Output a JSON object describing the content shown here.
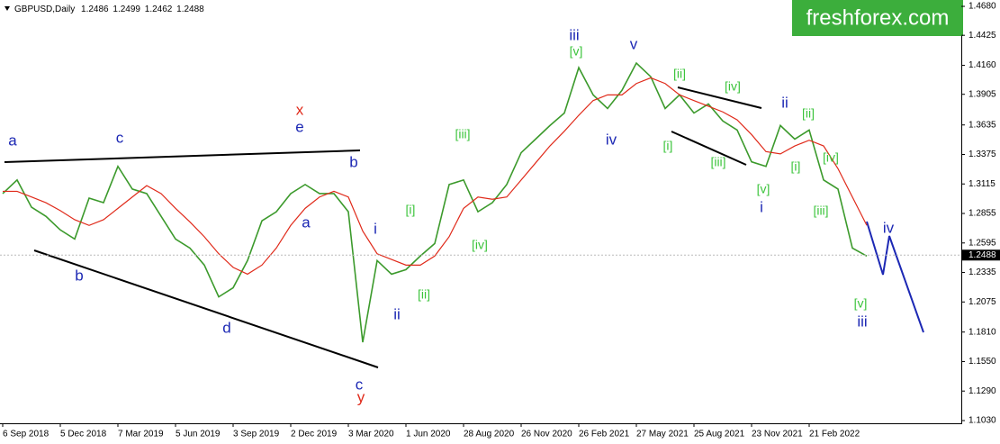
{
  "chart_data": {
    "type": "line",
    "symbol": "GBPUSD,Daily",
    "ohlc": [
      1.2486,
      1.2499,
      1.2462,
      1.2488
    ],
    "logo": "freshforex.com",
    "categories": [
      "6 Sep 2018",
      null,
      null,
      null,
      "5 Dec 2018",
      null,
      null,
      null,
      "7 Mar 2019",
      null,
      null,
      null,
      "5 Jun 2019",
      null,
      null,
      null,
      "3 Sep 2019",
      null,
      null,
      null,
      "2 Dec 2019",
      null,
      null,
      null,
      "3 Mar 2020",
      null,
      null,
      null,
      "1 Jun 2020",
      null,
      null,
      null,
      "28 Aug 2020",
      null,
      null,
      null,
      "26 Nov 2020",
      null,
      null,
      null,
      "26 Feb 2021",
      null,
      null,
      null,
      "27 May 2021",
      null,
      null,
      null,
      "25 Aug 2021",
      null,
      null,
      null,
      "23 Nov 2021",
      null,
      null,
      null,
      "21 Feb 2022",
      null,
      null,
      null,
      null
    ],
    "series": [
      {
        "name": "GBPUSD",
        "color": "#3c9a2c",
        "values": [
          1.303,
          1.315,
          1.291,
          1.283,
          1.271,
          1.263,
          1.299,
          1.295,
          1.327,
          1.307,
          1.303,
          1.283,
          1.263,
          1.255,
          1.24,
          1.212,
          1.22,
          1.244,
          1.279,
          1.287,
          1.303,
          1.311,
          1.303,
          1.303,
          1.287,
          1.172,
          1.244,
          1.232,
          1.236,
          1.248,
          1.259,
          1.311,
          1.315,
          1.287,
          1.295,
          1.311,
          1.339,
          1.351,
          1.363,
          1.374,
          1.414,
          1.39,
          1.378,
          1.394,
          1.418,
          1.406,
          1.378,
          1.39,
          1.374,
          1.382,
          1.367,
          1.359,
          1.331,
          1.327,
          1.363,
          1.351,
          1.359,
          1.315,
          1.307,
          1.255,
          1.248
        ]
      },
      {
        "name": "MA",
        "color": "#e02a1a",
        "values": [
          1.305,
          1.305,
          1.3,
          1.295,
          1.288,
          1.28,
          1.275,
          1.28,
          1.29,
          1.3,
          1.31,
          1.303,
          1.29,
          1.278,
          1.265,
          1.25,
          1.238,
          1.232,
          1.24,
          1.255,
          1.275,
          1.29,
          1.3,
          1.305,
          1.3,
          1.27,
          1.25,
          1.245,
          1.24,
          1.24,
          1.248,
          1.265,
          1.29,
          1.3,
          1.298,
          1.3,
          1.315,
          1.33,
          1.345,
          1.358,
          1.372,
          1.385,
          1.39,
          1.39,
          1.4,
          1.405,
          1.4,
          1.39,
          1.385,
          1.38,
          1.375,
          1.368,
          1.355,
          1.34,
          1.338,
          1.345,
          1.35,
          1.345,
          1.325,
          1.3,
          1.275
        ]
      }
    ],
    "current_price": 1.2488,
    "ylim": [
      1.1006,
      1.4736
    ],
    "yticks": [
      {
        "value": 1.468,
        "label": "1.4680"
      },
      1.4425,
      {
        "value": 1.416,
        "label": "1.4160"
      },
      1.3905,
      1.3635,
      1.3375,
      1.3115,
      1.2855,
      1.2595,
      1.2335,
      1.2075,
      {
        "value": 1.181,
        "label": "1.1810"
      },
      {
        "value": 1.155,
        "label": "1.1550"
      },
      {
        "value": 1.129,
        "label": "1.1290"
      },
      {
        "value": 1.103,
        "label": "1.1030"
      }
    ],
    "wave_labels": [
      {
        "color": "#1c28b4",
        "labels": [
          "a",
          "c",
          "b",
          "d",
          "e",
          "b",
          "a",
          "c",
          "i",
          "ii",
          "iii",
          "v",
          "iv",
          "ii",
          "i",
          "iv",
          "iii"
        ]
      },
      {
        "color": "#e02a1a",
        "labels": [
          "x",
          "y"
        ]
      },
      {
        "color": "#3cc43c",
        "labels": [
          "[i]",
          "[ii]",
          "[iii]",
          "[iv]",
          "[v]",
          "[ii]",
          "[iv]",
          "[i]",
          "[iii]",
          "[v]",
          "[ii]",
          "[i]",
          "[iv]",
          "[iii]",
          "[v]"
        ]
      }
    ]
  }
}
